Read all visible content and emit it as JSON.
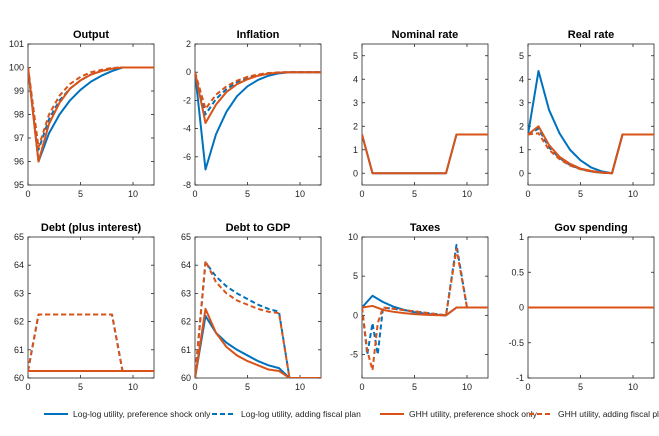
{
  "chart_data": {
    "type": "line",
    "legend": [
      {
        "name": "Log-log utility, preference shock only",
        "color": "#0072BD",
        "dash": false
      },
      {
        "name": "Log-log utility, adding fiscal plan",
        "color": "#0072BD",
        "dash": true
      },
      {
        "name": "GHH utility, preference shock only",
        "color": "#D95319",
        "dash": false
      },
      {
        "name": "GHH utility, adding fiscal plan",
        "color": "#D95319",
        "dash": true
      }
    ],
    "panels": [
      {
        "title": "Output",
        "xlim": [
          0,
          12
        ],
        "ylim": [
          95,
          101
        ],
        "xticks": [
          0,
          5,
          10
        ],
        "yticks": [
          95,
          96,
          97,
          98,
          99,
          100,
          101
        ],
        "series": [
          {
            "name": "Log-log utility, preference shock only",
            "x": [
              0,
              1,
              2,
              3,
              4,
              5,
              6,
              7,
              8,
              9,
              10,
              11,
              12
            ],
            "y": [
              100,
              96.0,
              97.2,
              98.0,
              98.6,
              99.05,
              99.4,
              99.65,
              99.85,
              100,
              100,
              100,
              100
            ]
          },
          {
            "name": "Log-log utility, adding fiscal plan",
            "x": [
              0,
              1,
              2,
              3,
              4,
              5,
              6,
              7,
              8,
              9,
              10,
              11,
              12
            ],
            "y": [
              100,
              96.5,
              97.8,
              98.6,
              99.1,
              99.45,
              99.7,
              99.85,
              99.95,
              100,
              100,
              100,
              100
            ]
          },
          {
            "name": "GHH utility, preference shock only",
            "x": [
              0,
              1,
              2,
              3,
              4,
              5,
              6,
              7,
              8,
              9,
              10,
              11,
              12
            ],
            "y": [
              100,
              96.0,
              97.6,
              98.5,
              99.1,
              99.45,
              99.7,
              99.85,
              99.95,
              100,
              100,
              100,
              100
            ]
          },
          {
            "name": "GHH utility, adding fiscal plan",
            "x": [
              0,
              1,
              2,
              3,
              4,
              5,
              6,
              7,
              8,
              9,
              10,
              11,
              12
            ],
            "y": [
              100,
              96.6,
              98.0,
              98.8,
              99.3,
              99.6,
              99.8,
              99.9,
              99.98,
              100,
              100,
              100,
              100
            ]
          }
        ]
      },
      {
        "title": "Inflation",
        "xlim": [
          0,
          12
        ],
        "ylim": [
          -8,
          2
        ],
        "xticks": [
          0,
          5,
          10
        ],
        "yticks": [
          -8,
          -6,
          -4,
          -2,
          0,
          2
        ],
        "series": [
          {
            "name": "Log-log utility, preference shock only",
            "x": [
              0,
              1,
              2,
              3,
              4,
              5,
              6,
              7,
              8,
              9,
              10,
              11,
              12
            ],
            "y": [
              0,
              -6.9,
              -4.4,
              -2.8,
              -1.7,
              -1.0,
              -0.55,
              -0.25,
              -0.08,
              0,
              0,
              0,
              0
            ]
          },
          {
            "name": "Log-log utility, adding fiscal plan",
            "x": [
              0,
              1,
              2,
              3,
              4,
              5,
              6,
              7,
              8,
              9,
              10,
              11,
              12
            ],
            "y": [
              0,
              -3.0,
              -1.9,
              -1.2,
              -0.7,
              -0.4,
              -0.2,
              -0.08,
              -0.02,
              0,
              0,
              0,
              0
            ]
          },
          {
            "name": "GHH utility, preference shock only",
            "x": [
              0,
              1,
              2,
              3,
              4,
              5,
              6,
              7,
              8,
              9,
              10,
              11,
              12
            ],
            "y": [
              0,
              -3.6,
              -2.3,
              -1.4,
              -0.85,
              -0.5,
              -0.25,
              -0.1,
              -0.03,
              0,
              0,
              0,
              0
            ]
          },
          {
            "name": "GHH utility, adding fiscal plan",
            "x": [
              0,
              1,
              2,
              3,
              4,
              5,
              6,
              7,
              8,
              9,
              10,
              11,
              12
            ],
            "y": [
              0,
              -2.6,
              -1.6,
              -1.0,
              -0.6,
              -0.33,
              -0.16,
              -0.06,
              -0.01,
              0,
              0,
              0,
              0
            ]
          }
        ]
      },
      {
        "title": "Nominal rate",
        "xlim": [
          0,
          12
        ],
        "ylim": [
          -0.5,
          5.5
        ],
        "xticks": [
          0,
          5,
          10
        ],
        "yticks": [
          0,
          1,
          2,
          3,
          4,
          5
        ],
        "series": [
          {
            "name": "Log-log utility, preference shock only",
            "x": [
              0,
              1,
              2,
              3,
              4,
              5,
              6,
              7,
              8,
              9,
              10,
              11,
              12
            ],
            "y": [
              1.65,
              0,
              0,
              0,
              0,
              0,
              0,
              0,
              0,
              1.65,
              1.65,
              1.65,
              1.65
            ]
          },
          {
            "name": "GHH utility, preference shock only",
            "x": [
              0,
              1,
              2,
              3,
              4,
              5,
              6,
              7,
              8,
              9,
              10,
              11,
              12
            ],
            "y": [
              1.65,
              0,
              0,
              0,
              0,
              0,
              0,
              0,
              0,
              1.65,
              1.65,
              1.65,
              1.65
            ]
          }
        ]
      },
      {
        "title": "Real rate",
        "xlim": [
          0,
          12
        ],
        "ylim": [
          -0.5,
          5.5
        ],
        "xticks": [
          0,
          5,
          10
        ],
        "yticks": [
          0,
          1,
          2,
          3,
          4,
          5
        ],
        "series": [
          {
            "name": "Log-log utility, preference shock only",
            "x": [
              0,
              1,
              2,
              3,
              4,
              5,
              6,
              7,
              8,
              9,
              10,
              11,
              12
            ],
            "y": [
              1.65,
              4.35,
              2.7,
              1.7,
              1.0,
              0.55,
              0.25,
              0.08,
              0,
              1.65,
              1.65,
              1.65,
              1.65
            ]
          },
          {
            "name": "Log-log utility, adding fiscal plan",
            "x": [
              0,
              1,
              2,
              3,
              4,
              5,
              6,
              7,
              8,
              9,
              10,
              11,
              12
            ],
            "y": [
              1.65,
              1.9,
              1.1,
              0.65,
              0.35,
              0.18,
              0.08,
              0.02,
              0,
              1.65,
              1.65,
              1.65,
              1.65
            ]
          },
          {
            "name": "GHH utility, preference shock only",
            "x": [
              0,
              1,
              2,
              3,
              4,
              5,
              6,
              7,
              8,
              9,
              10,
              11,
              12
            ],
            "y": [
              1.65,
              2.0,
              1.2,
              0.7,
              0.4,
              0.2,
              0.1,
              0.03,
              0,
              1.65,
              1.65,
              1.65,
              1.65
            ]
          },
          {
            "name": "GHH utility, adding fiscal plan",
            "x": [
              0,
              1,
              2,
              3,
              4,
              5,
              6,
              7,
              8,
              9,
              10,
              11,
              12
            ],
            "y": [
              1.65,
              1.7,
              1.0,
              0.6,
              0.33,
              0.17,
              0.07,
              0.02,
              0,
              1.65,
              1.65,
              1.65,
              1.65
            ]
          }
        ]
      },
      {
        "title": "Debt (plus interest)",
        "xlim": [
          0,
          12
        ],
        "ylim": [
          60,
          65
        ],
        "xticks": [
          0,
          5,
          10
        ],
        "yticks": [
          60,
          61,
          62,
          63,
          64,
          65
        ],
        "series": [
          {
            "name": "Log-log utility, preference shock only",
            "x": [
              0,
              12
            ],
            "y": [
              60.25,
              60.25
            ]
          },
          {
            "name": "Log-log utility, adding fiscal plan",
            "x": [
              0,
              1,
              8,
              9,
              12
            ],
            "y": [
              60.25,
              62.25,
              62.25,
              60.25,
              60.25
            ]
          },
          {
            "name": "GHH utility, preference shock only",
            "x": [
              0,
              12
            ],
            "y": [
              60.25,
              60.25
            ]
          },
          {
            "name": "GHH utility, adding fiscal plan",
            "x": [
              0,
              1,
              8,
              9,
              12
            ],
            "y": [
              60.25,
              62.25,
              62.25,
              60.25,
              60.25
            ]
          }
        ]
      },
      {
        "title": "Debt to GDP",
        "xlim": [
          0,
          12
        ],
        "ylim": [
          60,
          65
        ],
        "xticks": [
          0,
          5,
          10
        ],
        "yticks": [
          60,
          61,
          62,
          63,
          64,
          65
        ],
        "series": [
          {
            "name": "Log-log utility, preference shock only",
            "x": [
              0,
              1,
              2,
              3,
              4,
              5,
              6,
              7,
              8,
              9,
              10,
              11,
              12
            ],
            "y": [
              60,
              62.2,
              61.6,
              61.25,
              61.0,
              60.8,
              60.6,
              60.45,
              60.35,
              60,
              60,
              60,
              60
            ]
          },
          {
            "name": "Log-log utility, adding fiscal plan",
            "x": [
              0,
              1,
              2,
              3,
              4,
              5,
              6,
              7,
              8,
              9,
              10,
              11,
              12
            ],
            "y": [
              60,
              64.1,
              63.6,
              63.25,
              63.0,
              62.8,
              62.6,
              62.45,
              62.35,
              60,
              60,
              60,
              60
            ]
          },
          {
            "name": "GHH utility, preference shock only",
            "x": [
              0,
              1,
              2,
              3,
              4,
              5,
              6,
              7,
              8,
              9,
              10,
              11,
              12
            ],
            "y": [
              60,
              62.45,
              61.6,
              61.1,
              60.8,
              60.6,
              60.45,
              60.3,
              60.25,
              60,
              60,
              60,
              60
            ]
          },
          {
            "name": "GHH utility, adding fiscal plan",
            "x": [
              0,
              1,
              2,
              3,
              4,
              5,
              6,
              7,
              8,
              9,
              10,
              11,
              12
            ],
            "y": [
              60,
              64.15,
              63.4,
              63.0,
              62.75,
              62.6,
              62.45,
              62.35,
              62.3,
              60,
              60,
              60,
              60
            ]
          }
        ]
      },
      {
        "title": "Taxes",
        "xlim": [
          0,
          12
        ],
        "ylim": [
          -8,
          10
        ],
        "xticks": [
          0,
          5,
          10
        ],
        "yticks": [
          -5,
          0,
          5,
          10
        ],
        "series": [
          {
            "name": "Log-log utility, preference shock only",
            "x": [
              0,
              1,
              2,
              3,
              4,
              5,
              6,
              7,
              8,
              9,
              10,
              11,
              12
            ],
            "y": [
              1.0,
              2.5,
              1.7,
              1.1,
              0.7,
              0.4,
              0.2,
              0.08,
              0,
              1.0,
              1.0,
              1.0,
              1.0
            ]
          },
          {
            "name": "Log-log utility, adding fiscal plan",
            "x": [
              0,
              0.5,
              1,
              1.5,
              2,
              8,
              9,
              10,
              11,
              12
            ],
            "y": [
              1.0,
              -5.0,
              -1.0,
              -5.0,
              1.0,
              0,
              9.0,
              1.0,
              1.0,
              1.0
            ]
          },
          {
            "name": "GHH utility, preference shock only",
            "x": [
              0,
              1,
              2,
              3,
              4,
              5,
              6,
              7,
              8,
              9,
              10,
              11,
              12
            ],
            "y": [
              1.0,
              1.2,
              0.7,
              0.45,
              0.28,
              0.15,
              0.07,
              0.02,
              0,
              1.0,
              1.0,
              1.0,
              1.0
            ]
          },
          {
            "name": "GHH utility, adding fiscal plan",
            "x": [
              0,
              0.5,
              1,
              1.5,
              2,
              8,
              9,
              10,
              11,
              12
            ],
            "y": [
              1.0,
              -4.5,
              -7.0,
              -1.0,
              1.0,
              0,
              8.5,
              1.0,
              1.0,
              1.0
            ]
          }
        ]
      },
      {
        "title": "Gov spending",
        "xlim": [
          0,
          12
        ],
        "ylim": [
          -1,
          1
        ],
        "xticks": [
          0,
          5,
          10
        ],
        "yticks": [
          -1,
          -0.5,
          0,
          0.5,
          1
        ],
        "series": [
          {
            "name": "Log-log utility, preference shock only",
            "x": [
              0,
              12
            ],
            "y": [
              0,
              0
            ]
          },
          {
            "name": "GHH utility, preference shock only",
            "x": [
              0,
              12
            ],
            "y": [
              0,
              0
            ]
          }
        ]
      }
    ]
  }
}
